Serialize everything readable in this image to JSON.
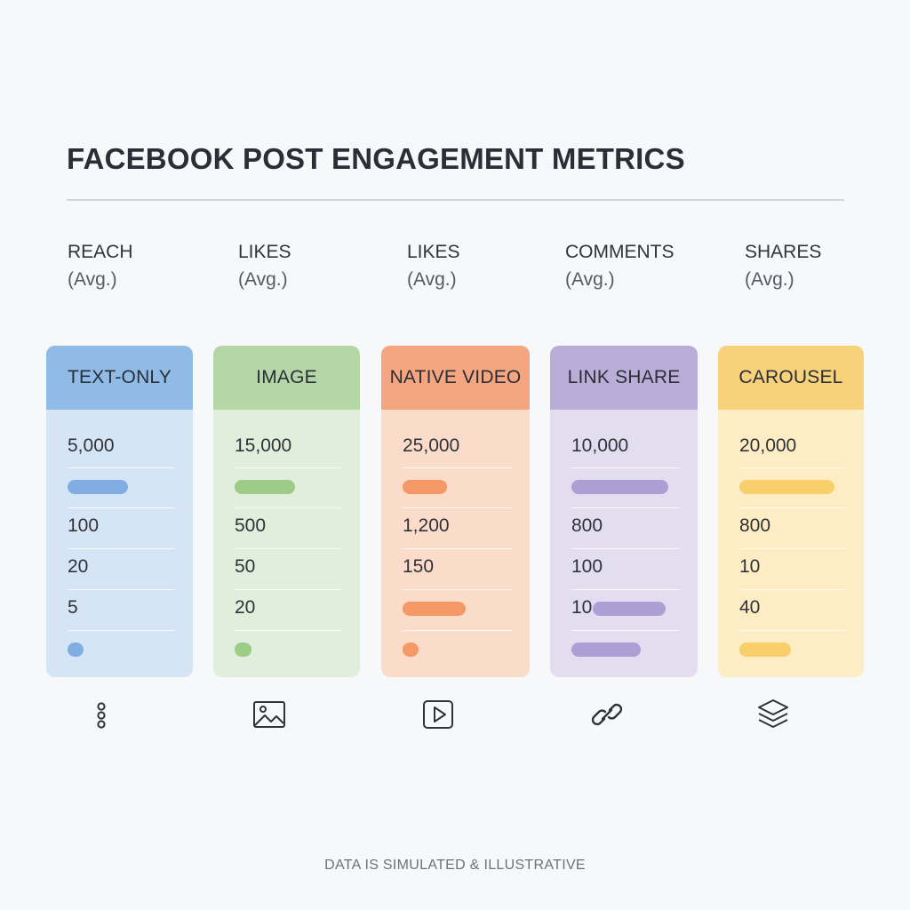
{
  "chart_data": {
    "type": "table",
    "title": "FACEBOOK POST ENGAGEMENT METRICS",
    "column_headers": [
      {
        "label": "REACH",
        "sub": "(Avg.)"
      },
      {
        "label": "LIKES",
        "sub": "(Avg.)"
      },
      {
        "label": "LIKES",
        "sub": "(Avg.)"
      },
      {
        "label": "COMMENTS",
        "sub": "(Avg.)"
      },
      {
        "label": "SHARES",
        "sub": "(Avg.)"
      }
    ],
    "cards": [
      {
        "name": "TEXT-ONLY",
        "icon": "person-icon",
        "header_color": "#90bbe6",
        "body_color": "#d6e5f5",
        "bar_color": "#82ade2",
        "values": [
          "5,000",
          "100",
          "20",
          "5"
        ],
        "bars": [
          {
            "fraction": 0.56
          },
          {
            "fraction": 0.15
          }
        ]
      },
      {
        "name": "IMAGE",
        "icon": "image-icon",
        "header_color": "#b5d7a7",
        "body_color": "#e1eedb",
        "bar_color": "#9ccc88",
        "values": [
          "15,000",
          "500",
          "50",
          "20"
        ],
        "bars": [
          {
            "fraction": 0.56
          },
          {
            "fraction": 0.16
          }
        ]
      },
      {
        "name": "NATIVE VIDEO",
        "icon": "play-icon",
        "header_color": "#f5a57f",
        "body_color": "#fbdcca",
        "bar_color": "#f59868",
        "values": [
          "25,000",
          "1,200",
          "150",
          ""
        ],
        "bars": [
          {
            "fraction": 0.41
          },
          {
            "fraction": 0.15
          }
        ],
        "extra_bar": {
          "fraction": 0.58
        }
      },
      {
        "name": "LINK SHARE",
        "icon": "link-icon",
        "header_color": "#baaed9",
        "body_color": "#e2def0",
        "bar_color": "#ad9ed4",
        "values": [
          "10,000",
          "800",
          "100",
          "10"
        ],
        "bars": [
          {
            "fraction": 0.89
          },
          {
            "fraction": 0.64
          }
        ],
        "inline_bar": {
          "fraction": 0.67
        }
      },
      {
        "name": "CAROUSEL",
        "icon": "layers-icon",
        "header_color": "#f8d27a",
        "body_color": "#fdecc4",
        "bar_color": "#f8cf6a",
        "values": [
          "20,000",
          "800",
          "10",
          "40"
        ],
        "bars": [
          {
            "fraction": 0.89
          },
          {
            "fraction": 0.48
          }
        ]
      }
    ],
    "footnote": "DATA IS SIMULATED & ILLUSTRATIVE"
  }
}
